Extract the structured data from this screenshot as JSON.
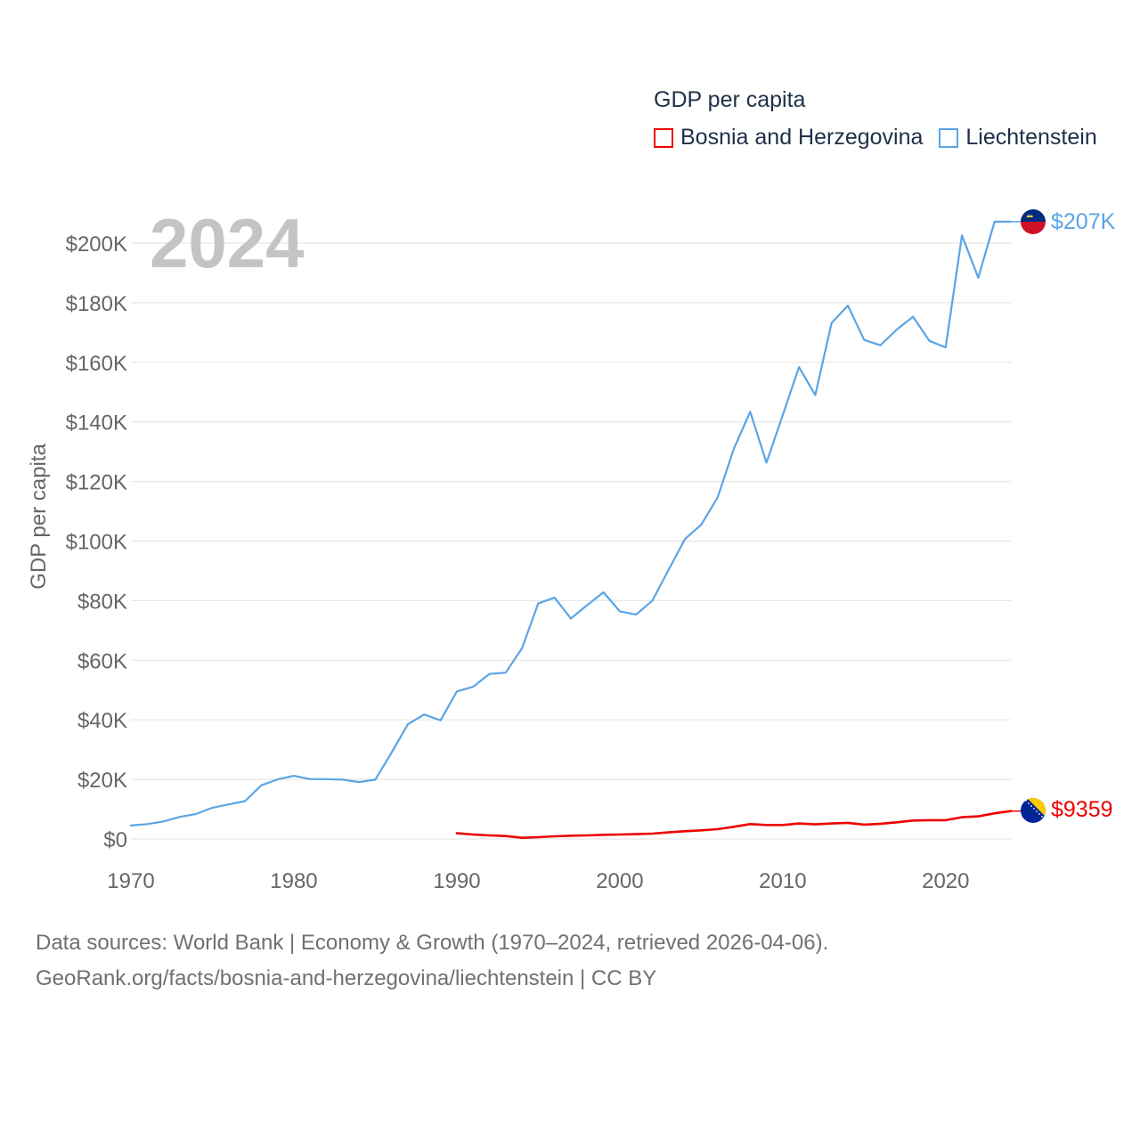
{
  "legend": {
    "title": "GDP per capita",
    "items": [
      {
        "label": "Bosnia and Herzegovina",
        "color": "#ee0000"
      },
      {
        "label": "Liechtenstein",
        "color": "#5aa5e6"
      }
    ]
  },
  "year_watermark": "2024",
  "end_labels": {
    "liechtenstein": "$207K",
    "bosnia": "$9359"
  },
  "sources": {
    "line1": "Data sources: World Bank | Economy & Growth (1970–2024, retrieved 2026-04-06).",
    "line2": "GeoRank.org/facts/bosnia-and-herzegovina/liechtenstein | CC BY"
  },
  "colors": {
    "liechtenstein": "#5aa5e6",
    "bosnia": "#ee0000",
    "grid": "#e6e6e6",
    "axis_text": "#666666",
    "watermark": "#c4c4c4"
  },
  "chart_data": {
    "type": "line",
    "title": "GDP per capita",
    "xlabel": "",
    "ylabel": "GDP per capita",
    "xlim": [
      1970,
      2024
    ],
    "ylim": [
      0,
      200000
    ],
    "x_ticks": [
      1970,
      1980,
      1990,
      2000,
      2010,
      2020
    ],
    "x_tick_labels": [
      "1970",
      "1980",
      "1990",
      "2000",
      "2010",
      "2020"
    ],
    "y_ticks": [
      0,
      20000,
      40000,
      60000,
      80000,
      100000,
      120000,
      140000,
      160000,
      180000,
      200000
    ],
    "y_tick_labels": [
      "$0",
      "$20K",
      "$40K",
      "$60K",
      "$80K",
      "$100K",
      "$120K",
      "$140K",
      "$160K",
      "$180K",
      "$200K"
    ],
    "grid": true,
    "legend_position": "top-right",
    "series": [
      {
        "name": "Liechtenstein",
        "key": "liechtenstein",
        "x": [
          1970,
          1971,
          1972,
          1973,
          1974,
          1975,
          1976,
          1977,
          1978,
          1979,
          1980,
          1981,
          1982,
          1983,
          1984,
          1985,
          1986,
          1987,
          1988,
          1989,
          1990,
          1991,
          1992,
          1993,
          1994,
          1995,
          1996,
          1997,
          1998,
          1999,
          2000,
          2001,
          2002,
          2003,
          2004,
          2005,
          2006,
          2007,
          2008,
          2009,
          2010,
          2011,
          2012,
          2013,
          2014,
          2015,
          2016,
          2017,
          2018,
          2019,
          2020,
          2021,
          2022,
          2023,
          2024
        ],
        "values": [
          4500,
          5000,
          5900,
          7400,
          8400,
          10500,
          11600,
          12700,
          18000,
          20000,
          21200,
          20100,
          20100,
          19900,
          19100,
          19900,
          29000,
          38500,
          41800,
          39800,
          49500,
          51100,
          55400,
          55800,
          64000,
          79100,
          81000,
          74000,
          78500,
          82800,
          76400,
          75300,
          80000,
          90400,
          100700,
          105500,
          114600,
          131000,
          143400,
          126300,
          142300,
          158400,
          149000,
          173200,
          179000,
          167500,
          165700,
          171000,
          175300,
          167200,
          165000,
          202600,
          188400,
          207200,
          207200
        ]
      },
      {
        "name": "Bosnia and Herzegovina",
        "key": "bosnia",
        "x": [
          1990,
          1991,
          1992,
          1993,
          1994,
          1995,
          1996,
          1997,
          1998,
          1999,
          2000,
          2001,
          2002,
          2003,
          2004,
          2005,
          2006,
          2007,
          2008,
          2009,
          2010,
          2011,
          2012,
          2013,
          2014,
          2015,
          2016,
          2017,
          2018,
          2019,
          2020,
          2021,
          2022,
          2023,
          2024
        ],
        "values": [
          1900,
          1500,
          1200,
          1000,
          400,
          600,
          900,
          1100,
          1200,
          1400,
          1500,
          1600,
          1800,
          2200,
          2600,
          2900,
          3300,
          4100,
          5000,
          4700,
          4700,
          5200,
          4900,
          5200,
          5400,
          4800,
          5100,
          5600,
          6200,
          6300,
          6300,
          7300,
          7600,
          8600,
          9359
        ]
      }
    ]
  }
}
